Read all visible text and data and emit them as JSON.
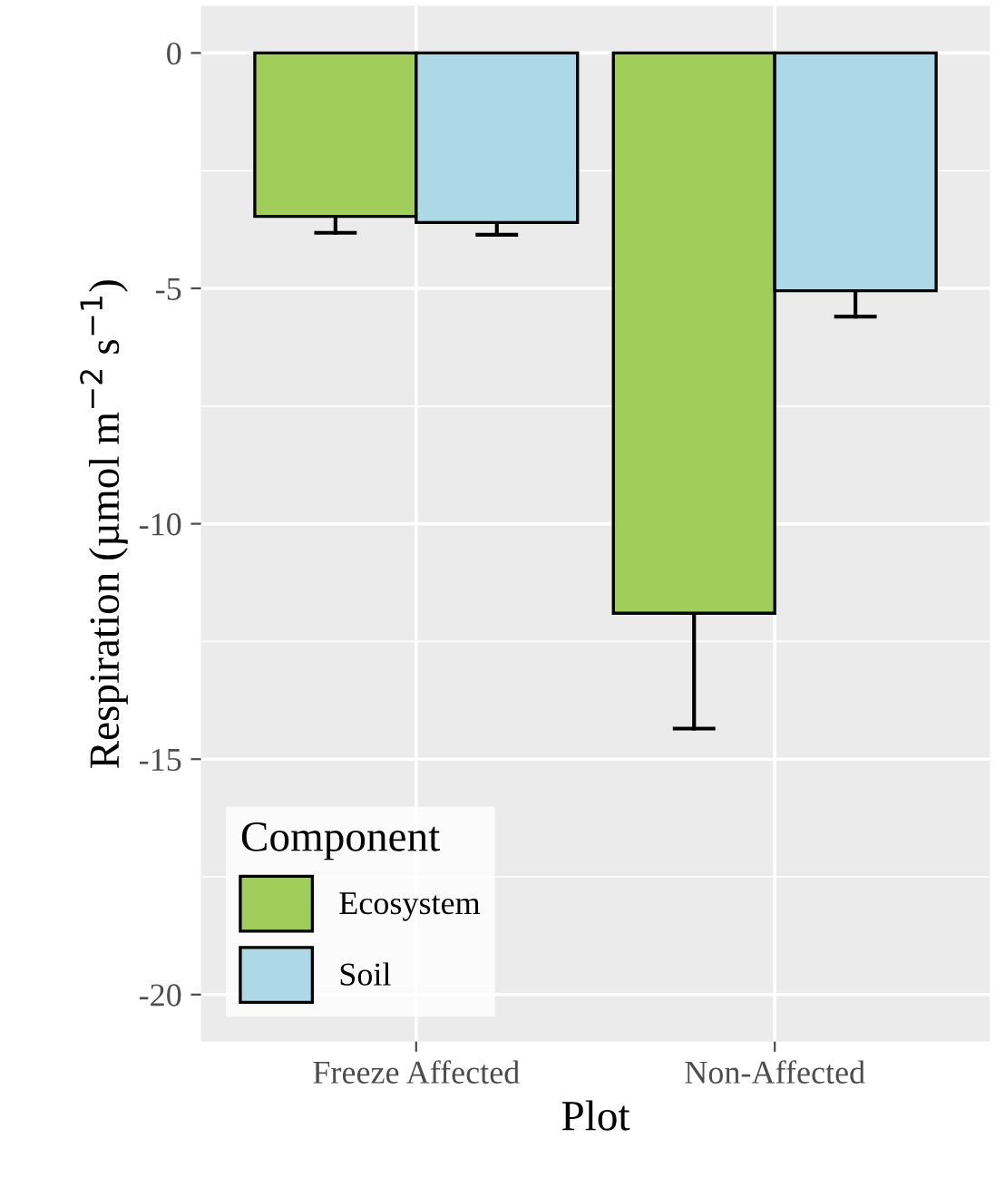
{
  "chart_data": {
    "type": "bar",
    "xlabel": "Plot",
    "ylabel": "Respiration (µmol m$^{−2}$ s$^{−1}$)",
    "legend_title": "Component",
    "categories": [
      "Freeze Affected",
      "Non-Affected"
    ],
    "series": [
      {
        "name": "Ecosystem",
        "color": "#a1cd5a",
        "values": [
          -3.47,
          -11.9
        ],
        "errors": [
          [
            -3.82,
            -3.47
          ],
          [
            -14.35,
            -11.9
          ]
        ]
      },
      {
        "name": "Soil",
        "color": "#add8e6",
        "values": [
          -3.6,
          -5.05
        ],
        "errors": [
          [
            -3.86,
            -3.6
          ],
          [
            -5.6,
            -5.05
          ]
        ]
      }
    ],
    "ylim": [
      -21,
      1
    ],
    "yticks": [
      -20,
      -15,
      -10,
      -5,
      0
    ],
    "grid": true,
    "legend": "bottom left"
  }
}
